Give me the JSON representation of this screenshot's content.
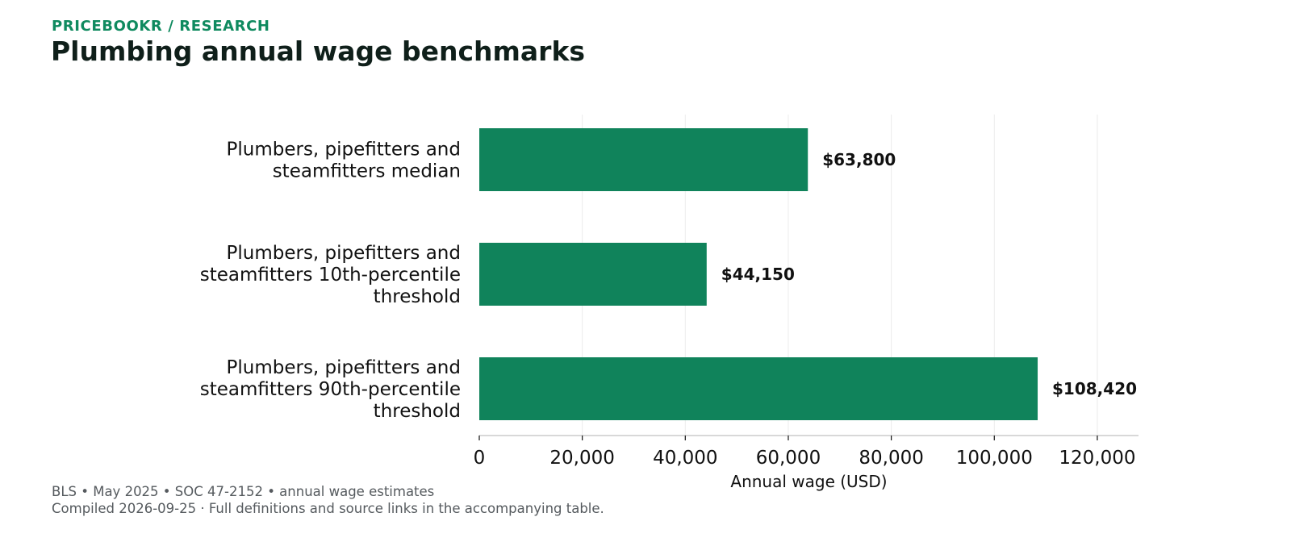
{
  "header": {
    "brand": "PRICEBOOKR / RESEARCH",
    "title": "Plumbing annual wage benchmarks"
  },
  "footer": {
    "source_line": "BLS • May 2025 • SOC 47-2152 • annual wage estimates",
    "note_line": "Compiled 2026-09-25 · Full definitions and source links in the accompanying table."
  },
  "colors": {
    "bar": "#10835b",
    "brand": "#0f8a5f",
    "grid": "#ececec",
    "axis": "#cccccc"
  },
  "chart_data": {
    "type": "bar",
    "orientation": "horizontal",
    "categories": [
      [
        "Plumbers, pipefitters and",
        "steamfitters median"
      ],
      [
        "Plumbers, pipefitters and",
        "steamfitters 10th-percentile",
        "threshold"
      ],
      [
        "Plumbers, pipefitters and",
        "steamfitters 90th-percentile",
        "threshold"
      ]
    ],
    "values": [
      63800,
      44150,
      108420
    ],
    "value_labels": [
      "$63,800",
      "$44,150",
      "$108,420"
    ],
    "xlabel": "Annual wage (USD)",
    "ylabel": "",
    "xlim": [
      0,
      128000
    ],
    "xticks": [
      0,
      20000,
      40000,
      60000,
      80000,
      100000,
      120000
    ],
    "xtick_labels": [
      "0",
      "20,000",
      "40,000",
      "60,000",
      "80,000",
      "100,000",
      "120,000"
    ],
    "grid": true
  }
}
